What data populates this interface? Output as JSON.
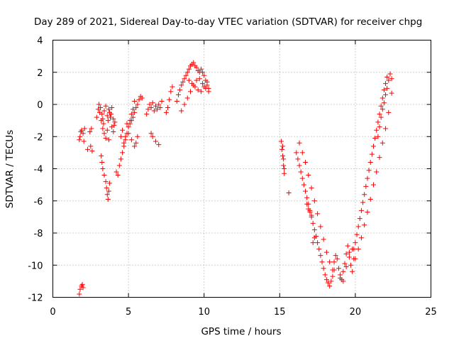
{
  "chart_data": {
    "type": "scatter",
    "title": "Day 289 of 2021, Sidereal Day-to-day VTEC variation (SDTVAR) for receiver chpg",
    "xlabel": "GPS time / hours",
    "ylabel": "SDTVAR / TECUs",
    "xlim": [
      0,
      25
    ],
    "ylim": [
      -12,
      4
    ],
    "xticks": [
      0,
      5,
      10,
      15,
      20,
      25
    ],
    "yticks": [
      -12,
      -10,
      -8,
      -6,
      -4,
      -2,
      0,
      2,
      4
    ],
    "xtick_labels": [
      "0",
      "5",
      "10",
      "15",
      "20",
      "25"
    ],
    "ytick_labels": [
      "-12",
      "-10",
      "-8",
      "-6",
      "-4",
      "-2",
      "0",
      "2",
      "4"
    ],
    "grid": true,
    "marker": "+",
    "series": [
      {
        "name": "SDTVAR",
        "color": "#ff0000",
        "x": [
          1.75,
          1.8,
          1.9,
          1.95,
          2.0,
          1.75,
          1.8,
          1.85,
          1.9,
          2.0,
          2.05,
          2.1,
          2.3,
          2.5,
          2.6,
          2.45,
          2.55,
          2.9,
          3.0,
          3.05,
          3.1,
          3.15,
          3.2,
          3.25,
          3.3,
          3.35,
          3.4,
          3.5,
          3.6,
          3.65,
          3.7,
          3.75,
          3.8,
          3.85,
          3.9,
          4.0,
          4.05,
          4.1,
          3.3,
          3.4,
          3.5,
          3.6,
          3.7,
          3.9,
          4.0,
          3.2,
          3.25,
          3.3,
          3.4,
          3.5,
          3.55,
          3.6,
          3.65,
          3.7,
          3.75,
          4.2,
          4.3,
          4.4,
          4.5,
          4.6,
          4.7,
          4.8,
          4.9,
          5.0,
          5.1,
          5.2,
          5.3,
          5.4,
          4.5,
          4.6,
          4.7,
          4.8,
          4.9,
          5.0,
          5.2,
          5.4,
          5.5,
          5.6,
          5.1,
          5.2,
          5.3,
          5.4,
          5.5,
          5.6,
          5.7,
          5.8,
          5.9,
          6.2,
          6.3,
          6.4,
          6.5,
          6.6,
          6.7,
          6.8,
          6.9,
          7.0,
          7.1,
          7.2,
          6.5,
          6.6,
          6.8,
          7.0,
          7.5,
          7.6,
          7.7,
          7.8,
          7.9,
          8.2,
          8.3,
          8.4,
          8.5,
          8.6,
          8.7,
          8.8,
          8.9,
          9.0,
          9.1,
          9.2,
          9.3,
          9.4,
          9.5,
          9.6,
          9.7,
          9.8,
          9.9,
          10.0,
          10.1,
          10.2,
          10.3,
          8.5,
          8.7,
          8.9,
          9.1,
          9.3,
          9.5,
          9.7,
          9.9,
          10.1,
          10.3,
          9.0,
          9.2,
          9.4,
          9.6,
          9.8,
          10.0,
          10.2,
          15.1,
          15.15,
          15.2,
          15.25,
          15.3,
          15.2,
          15.25,
          15.3,
          15.6,
          16.1,
          16.2,
          16.3,
          16.4,
          16.5,
          16.6,
          16.7,
          16.8,
          16.9,
          17.0,
          17.1,
          17.2,
          17.3,
          17.4,
          17.5,
          17.6,
          17.7,
          17.8,
          17.9,
          18.0,
          18.1,
          18.2,
          18.3,
          18.4,
          18.5,
          18.6,
          16.3,
          16.5,
          16.7,
          16.9,
          17.1,
          17.3,
          17.5,
          17.7,
          17.9,
          18.1,
          18.3,
          18.5,
          16.8,
          16.9,
          17.0,
          17.1,
          17.2,
          17.3,
          18.6,
          18.7,
          18.8,
          18.9,
          19.0,
          19.1,
          19.2,
          19.3,
          19.4,
          19.5,
          19.6,
          19.7,
          19.8,
          19.9,
          19.0,
          19.2,
          19.4,
          19.6,
          19.8,
          19.9,
          20.0,
          20.1,
          20.2,
          20.3,
          20.4,
          20.5,
          20.6,
          20.7,
          20.8,
          20.9,
          21.0,
          21.1,
          21.2,
          21.3,
          21.4,
          21.5,
          21.6,
          21.7,
          21.8,
          21.9,
          22.0,
          22.1,
          22.2,
          22.3,
          22.4,
          20.0,
          20.2,
          20.4,
          20.6,
          20.8,
          21.0,
          21.2,
          21.4,
          21.6,
          21.8,
          22.0,
          22.2,
          22.4,
          21.5,
          21.6,
          21.7,
          21.8,
          21.9,
          22.0,
          22.1
        ],
        "y": [
          -11.8,
          -11.5,
          -11.3,
          -11.2,
          -11.4,
          -2.2,
          -2.0,
          -1.7,
          -1.6,
          -1.8,
          -2.3,
          -1.5,
          -2.8,
          -2.6,
          -2.9,
          -1.7,
          -1.5,
          -0.8,
          -0.3,
          0.0,
          -0.5,
          -0.2,
          -1.0,
          -0.6,
          -0.9,
          -1.2,
          -0.4,
          -0.1,
          -0.7,
          -1.0,
          -0.3,
          -0.5,
          -0.8,
          -0.6,
          -0.2,
          -0.9,
          -1.3,
          -1.1,
          -1.5,
          -1.8,
          -2.1,
          -1.6,
          -2.2,
          -1.4,
          -1.7,
          -3.2,
          -3.6,
          -4.0,
          -4.4,
          -4.8,
          -5.2,
          -5.6,
          -5.9,
          -5.4,
          -4.9,
          -4.2,
          -4.4,
          -3.8,
          -3.4,
          -3.0,
          -2.6,
          -2.2,
          -1.8,
          -1.4,
          -1.0,
          -0.6,
          -0.3,
          0.2,
          -2.0,
          -1.6,
          -2.4,
          -2.0,
          -1.2,
          -1.8,
          -2.2,
          -2.6,
          -2.4,
          -2.0,
          -1.2,
          -1.0,
          -0.8,
          -0.5,
          -0.2,
          0.0,
          0.3,
          0.5,
          0.4,
          -0.6,
          -0.3,
          0.0,
          -0.2,
          0.1,
          -0.4,
          -0.1,
          -0.3,
          0.0,
          -0.2,
          0.2,
          -1.8,
          -2.0,
          -2.3,
          -2.5,
          -0.5,
          -0.2,
          0.3,
          0.8,
          1.1,
          0.2,
          0.6,
          0.9,
          1.2,
          1.4,
          1.6,
          1.8,
          2.0,
          2.2,
          2.4,
          2.5,
          2.6,
          2.4,
          2.3,
          2.1,
          2.0,
          2.2,
          2.0,
          1.8,
          1.5,
          1.2,
          1.0,
          -0.4,
          0.0,
          0.4,
          0.8,
          1.2,
          1.5,
          1.6,
          1.3,
          1.0,
          0.8,
          1.5,
          1.3,
          1.1,
          0.9,
          0.8,
          1.1,
          1.4,
          -2.3,
          -2.8,
          -3.2,
          -3.8,
          -4.3,
          -2.6,
          -3.4,
          -4.0,
          -5.5,
          -3.0,
          -3.4,
          -3.8,
          -4.2,
          -4.6,
          -5.0,
          -5.4,
          -5.8,
          -6.2,
          -6.6,
          -7.0,
          -7.4,
          -7.8,
          -8.2,
          -8.6,
          -9.0,
          -9.4,
          -9.8,
          -10.2,
          -10.6,
          -10.9,
          -11.1,
          -11.3,
          -11.0,
          -10.7,
          -10.3,
          -2.4,
          -3.0,
          -3.6,
          -4.4,
          -5.2,
          -6.0,
          -6.8,
          -7.6,
          -8.4,
          -9.2,
          -9.8,
          -10.3,
          -6.2,
          -6.5,
          -6.7,
          -6.9,
          -8.6,
          -8.3,
          -9.8,
          -9.4,
          -9.6,
          -10.2,
          -10.6,
          -10.9,
          -10.4,
          -9.9,
          -9.3,
          -8.8,
          -9.2,
          -10.0,
          -10.4,
          -9.6,
          -10.8,
          -11.0,
          -10.1,
          -9.5,
          -9.0,
          -9.0,
          -8.6,
          -8.1,
          -7.6,
          -7.1,
          -6.6,
          -6.1,
          -5.6,
          -5.1,
          -4.6,
          -4.1,
          -3.6,
          -3.1,
          -2.6,
          -2.1,
          -1.6,
          -1.1,
          -0.6,
          -0.1,
          0.4,
          0.9,
          1.3,
          1.7,
          1.5,
          1.9,
          1.6,
          -9.6,
          -9.0,
          -8.3,
          -7.5,
          -6.7,
          -5.9,
          -5.0,
          -4.2,
          -3.3,
          -2.4,
          -1.5,
          -0.5,
          0.7,
          -2.0,
          -1.4,
          -0.8,
          -0.3,
          0.1,
          0.6,
          1.0
        ]
      }
    ]
  }
}
